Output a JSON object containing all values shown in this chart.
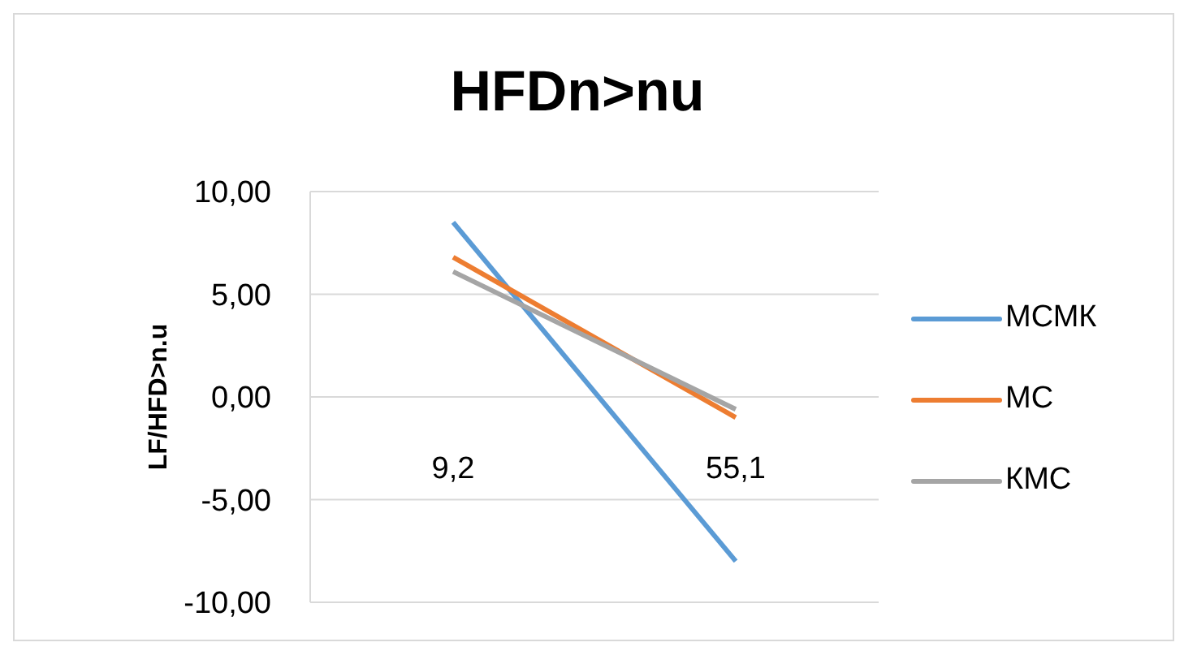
{
  "chart_data": {
    "type": "line",
    "title": "HFDn>nu",
    "ylabel": "LF/HFD>n.u",
    "categories": [
      "9,2",
      "55,1"
    ],
    "series": [
      {
        "name": "МСМК",
        "color": "#5b9bd5",
        "values": [
          8.5,
          -8.0
        ]
      },
      {
        "name": "МС",
        "color": "#ed7d31",
        "values": [
          6.8,
          -1.0
        ]
      },
      {
        "name": "КМС",
        "color": "#a5a5a5",
        "values": [
          6.1,
          -0.6
        ]
      }
    ],
    "ylim": [
      -10,
      10
    ],
    "yticks": [
      {
        "value": -10,
        "label": "-10,00"
      },
      {
        "value": -5,
        "label": "-5,00"
      },
      {
        "value": 0,
        "label": "0,00"
      },
      {
        "value": 5,
        "label": "5,00"
      },
      {
        "value": 10,
        "label": "10,00"
      }
    ],
    "grid": "y",
    "legend": "right",
    "marker": "none",
    "line_style": "solid"
  }
}
